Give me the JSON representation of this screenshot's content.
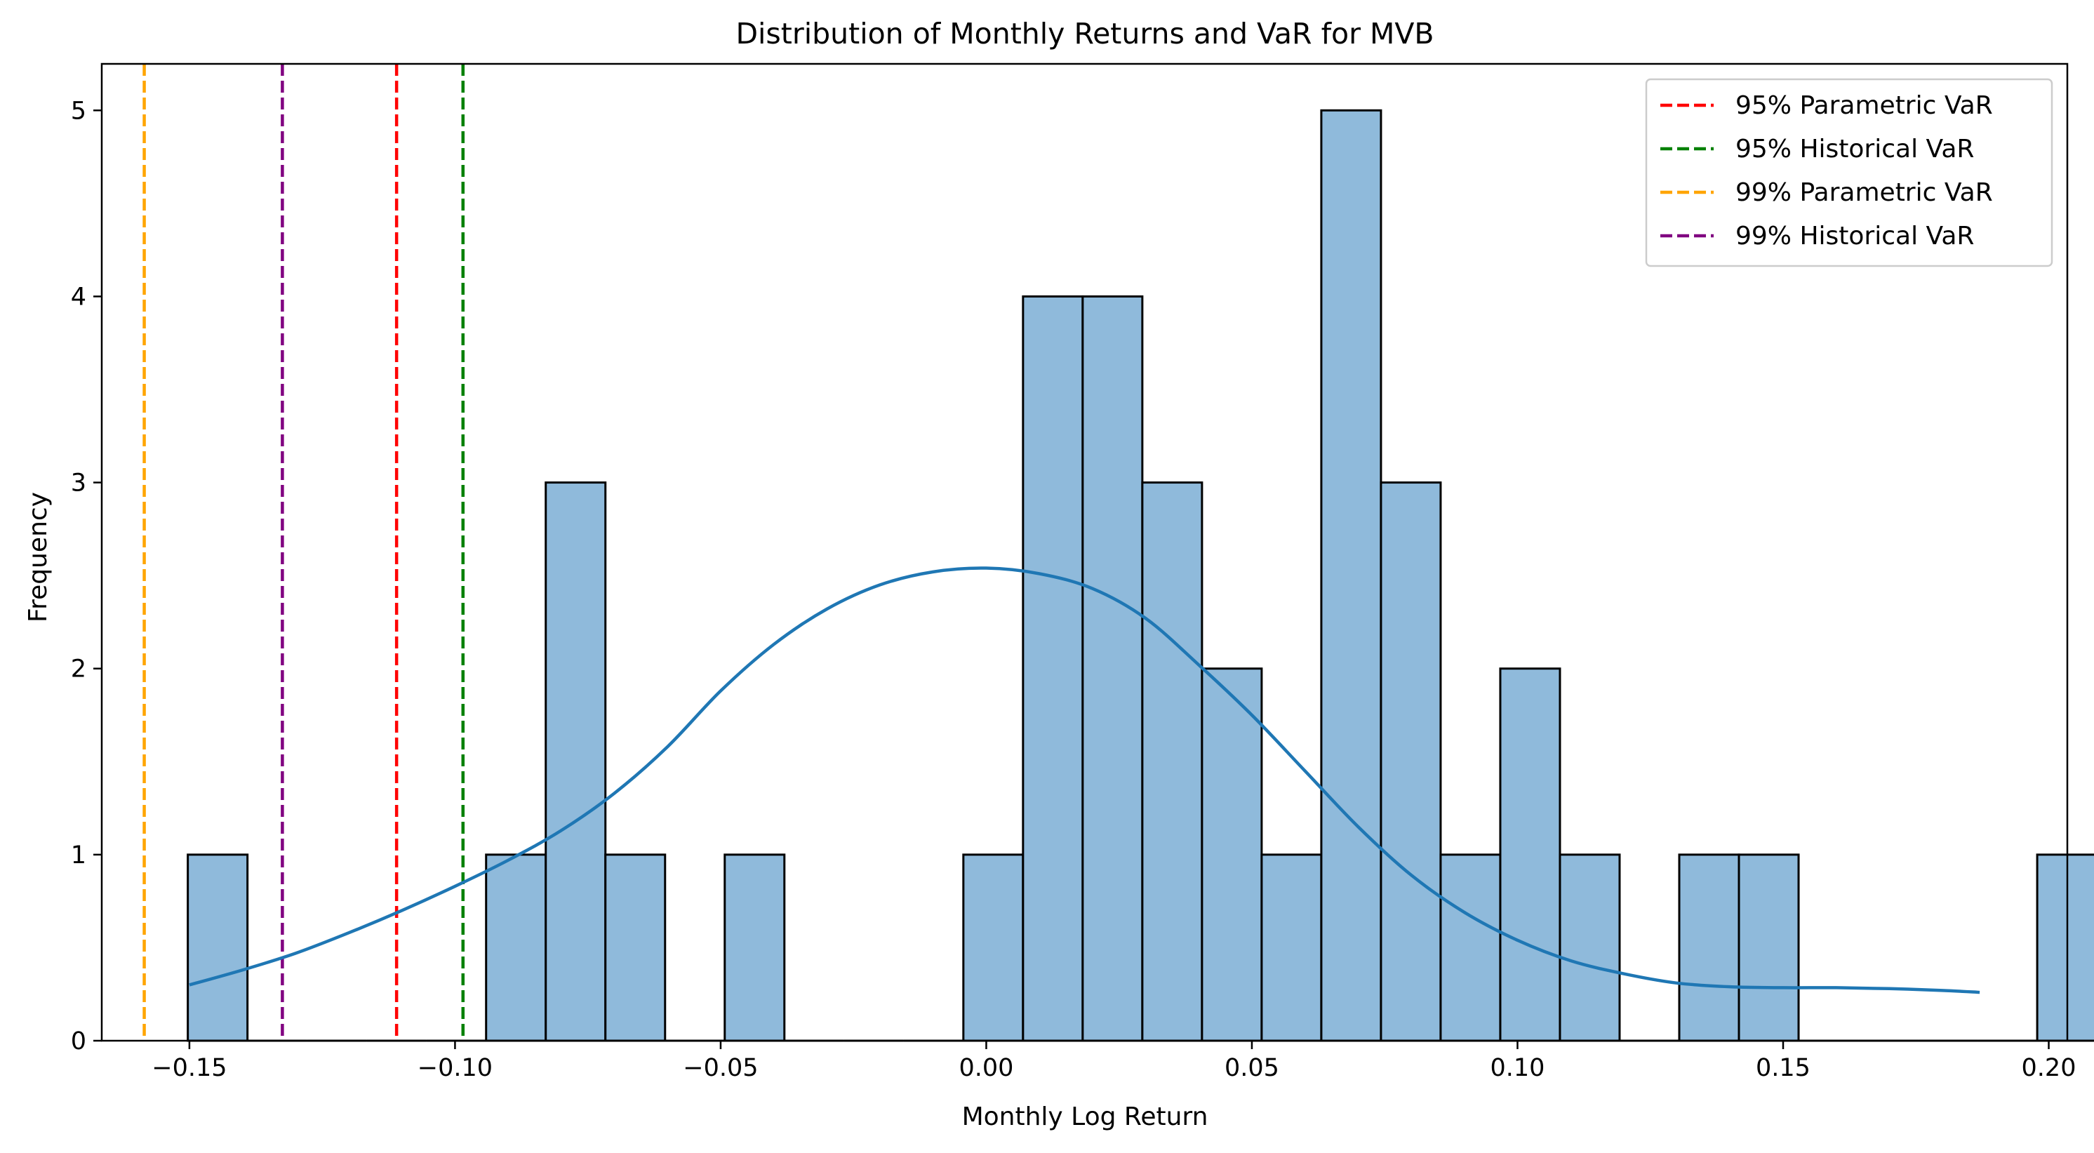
{
  "chart_data": {
    "type": "bar",
    "title": "Distribution of Monthly Returns and VaR for MVB",
    "xlabel": "Monthly Log Return",
    "ylabel": "Frequency",
    "xlim": [
      -0.1665,
      0.2035
    ],
    "ylim": [
      0,
      5.25
    ],
    "xticks": [
      -0.15,
      -0.1,
      -0.05,
      0.0,
      0.05,
      0.1,
      0.15,
      0.2
    ],
    "xtick_labels": [
      "−0.15",
      "−0.10",
      "−0.05",
      "0.00",
      "0.05",
      "0.10",
      "0.15",
      "0.20"
    ],
    "yticks": [
      0,
      1,
      2,
      3,
      4,
      5
    ],
    "ytick_labels": [
      "0",
      "1",
      "2",
      "3",
      "4",
      "5"
    ],
    "bin_start": -0.1503,
    "bin_width": 0.01123,
    "counts": [
      1,
      0,
      0,
      0,
      0,
      1,
      3,
      1,
      0,
      1,
      0,
      0,
      0,
      1,
      4,
      4,
      3,
      2,
      1,
      5,
      3,
      1,
      2,
      1,
      0,
      1,
      1,
      0,
      0,
      0,
      0,
      1,
      1
    ],
    "bar_color": "#8fbadb",
    "kde_color": "#1f77b4",
    "kde": {
      "x": [
        -0.15,
        -0.14,
        -0.13,
        -0.12,
        -0.11,
        -0.1,
        -0.09,
        -0.08,
        -0.07,
        -0.06,
        -0.05,
        -0.04,
        -0.03,
        -0.02,
        -0.01,
        0.0,
        0.01,
        0.02,
        0.03,
        0.04,
        0.05,
        0.06,
        0.07,
        0.08,
        0.09,
        0.1,
        0.11,
        0.12,
        0.13,
        0.14,
        0.15,
        0.16,
        0.17,
        0.18,
        0.187
      ],
      "y": [
        0.3,
        0.38,
        0.47,
        0.58,
        0.7,
        0.83,
        0.97,
        1.13,
        1.33,
        1.58,
        1.88,
        2.13,
        2.32,
        2.45,
        2.52,
        2.54,
        2.51,
        2.43,
        2.27,
        2.02,
        1.75,
        1.45,
        1.15,
        0.89,
        0.69,
        0.54,
        0.43,
        0.36,
        0.31,
        0.29,
        0.285,
        0.285,
        0.28,
        0.27,
        0.26
      ]
    },
    "vlines": [
      {
        "name": "95% Parametric VaR",
        "x": -0.111,
        "color": "#ff0000"
      },
      {
        "name": "95% Historical VaR",
        "x": -0.0985,
        "color": "#008000"
      },
      {
        "name": "99% Parametric VaR",
        "x": -0.1585,
        "color": "#ffa500"
      },
      {
        "name": "99% Historical VaR",
        "x": -0.1325,
        "color": "#800080"
      }
    ],
    "legend_position": "top-right",
    "grid": false
  }
}
